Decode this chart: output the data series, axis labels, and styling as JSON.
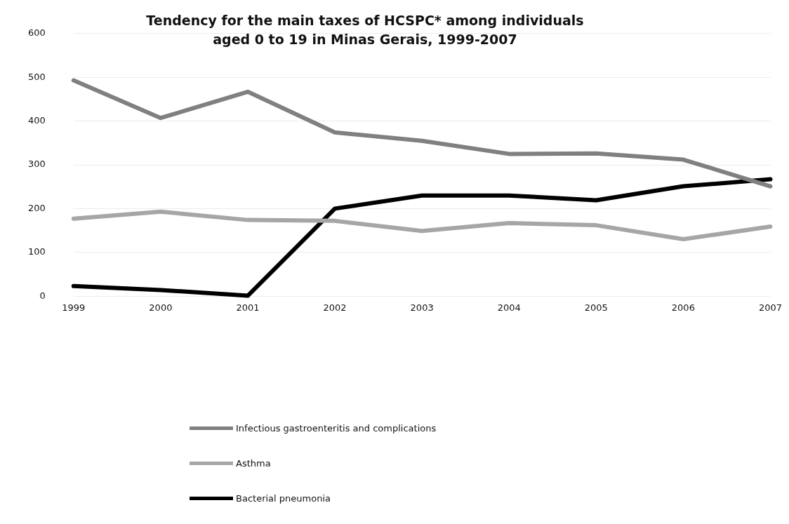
{
  "chart_data": {
    "type": "line",
    "title": "Tendency for the main taxes of HCSPC* among individuals aged 0 to 19 in Minas Gerais, 1999-2007",
    "categories": [
      "1999",
      "2000",
      "2001",
      "2002",
      "2003",
      "2004",
      "2005",
      "2006",
      "2007"
    ],
    "series": [
      {
        "name": "Infectious gastroenteritis and complications",
        "color": "#808080",
        "values": [
          493,
          407,
          467,
          374,
          355,
          325,
          326,
          312,
          251
        ]
      },
      {
        "name": "Asthma",
        "color": "#a6a6a6",
        "values": [
          177,
          193,
          174,
          172,
          149,
          167,
          162,
          130,
          159
        ]
      },
      {
        "name": "Bacterial pneumonia",
        "color": "#000000",
        "values": [
          23,
          14,
          1,
          200,
          230,
          230,
          219,
          251,
          267
        ]
      }
    ],
    "ylim": [
      0,
      600
    ],
    "yticks": [
      0,
      100,
      200,
      300,
      400,
      500,
      600
    ],
    "grid": "y",
    "legend": "bottom",
    "marker": "none",
    "line_style": "solid"
  }
}
